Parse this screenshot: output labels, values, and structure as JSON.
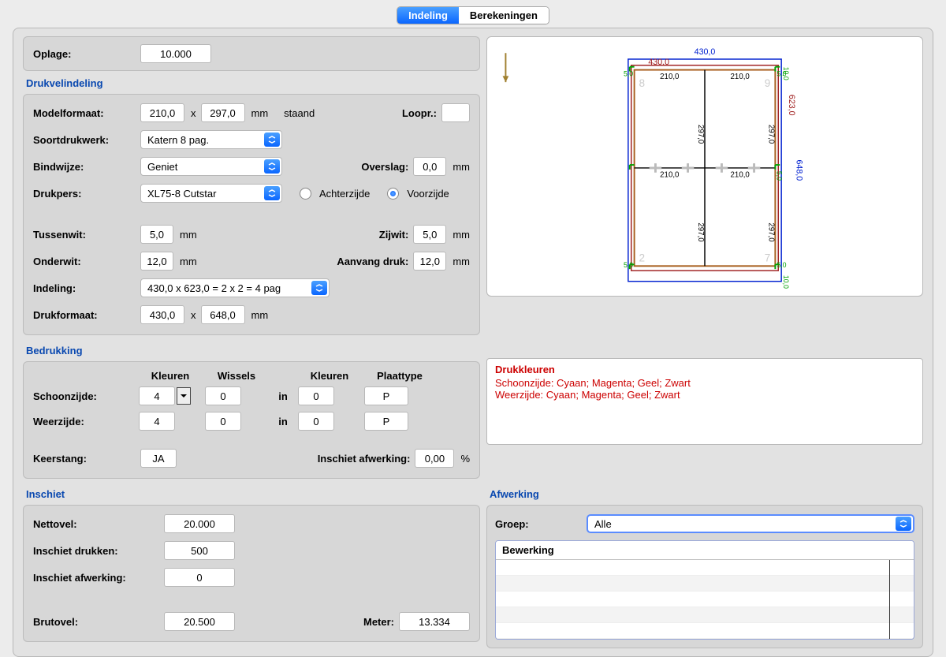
{
  "tabs": {
    "indeling": "Indeling",
    "berekeningen": "Berekeningen",
    "active": "indeling"
  },
  "oplage": {
    "label": "Oplage:",
    "value": "10.000"
  },
  "drukvelindeling": {
    "title": "Drukvelindeling",
    "modelformaat": {
      "label": "Modelformaat:",
      "w": "210,0",
      "x": "x",
      "h": "297,0",
      "unit": "mm",
      "orient": "staand"
    },
    "loopr": {
      "label": "Loopr.:",
      "value": ""
    },
    "soortdrukwerk": {
      "label": "Soortdrukwerk:",
      "value": "Katern   8 pag."
    },
    "bindwijze": {
      "label": "Bindwijze:",
      "value": "Geniet"
    },
    "overslag": {
      "label": "Overslag:",
      "value": "0,0",
      "unit": "mm"
    },
    "drukpers": {
      "label": "Drukpers:",
      "value": "XL75-8 Cutstar"
    },
    "side": {
      "achter": "Achterzijde",
      "voor": "Voorzijde",
      "checked": "voor"
    },
    "tussenwit": {
      "label": "Tussenwit:",
      "value": "5,0",
      "unit": "mm"
    },
    "zijwit": {
      "label": "Zijwit:",
      "value": "5,0",
      "unit": "mm"
    },
    "onderwit": {
      "label": "Onderwit:",
      "value": "12,0",
      "unit": "mm"
    },
    "aanvangdruk": {
      "label": "Aanvang druk:",
      "value": "12,0",
      "unit": "mm"
    },
    "indeling": {
      "label": "Indeling:",
      "value": "430,0 x 623,0 = 2 x 2 = 4 pag"
    },
    "drukformaat": {
      "label": "Drukformaat:",
      "w": "430,0",
      "x": "x",
      "h": "648,0",
      "unit": "mm"
    }
  },
  "bedrukking": {
    "title": "Bedrukking",
    "headers": {
      "kleuren": "Kleuren",
      "wissels": "Wissels",
      "in": "in",
      "kleuren2": "Kleuren",
      "plaattype": "Plaattype"
    },
    "schoonzijde": {
      "label": "Schoonzijde:",
      "kleuren": "4",
      "wissels": "0",
      "in": "in",
      "kleuren2": "0",
      "plaat": "P"
    },
    "weerzijde": {
      "label": "Weerzijde:",
      "kleuren": "4",
      "wissels": "0",
      "in": "in",
      "kleuren2": "0",
      "plaat": "P"
    },
    "keerstang": {
      "label": "Keerstang:",
      "value": "JA"
    },
    "inschietafw": {
      "label": "Inschiet afwerking:",
      "value": "0,00",
      "unit": "%"
    },
    "drukkleuren": {
      "title": "Drukkleuren",
      "schoon": "Schoonzijde: Cyaan; Magenta; Geel; Zwart",
      "weer": "Weerzijde: Cyaan; Magenta; Geel; Zwart"
    }
  },
  "inschiet": {
    "title": "Inschiet",
    "nettovel": {
      "label": "Nettovel:",
      "value": "20.000"
    },
    "inschietdrukken": {
      "label": "Inschiet drukken:",
      "value": "500"
    },
    "inschietafwerking": {
      "label": "Inschiet afwerking:",
      "value": "0"
    },
    "brutovel": {
      "label": "Brutovel:",
      "value": "20.500"
    },
    "meter": {
      "label": "Meter:",
      "value": "13.334"
    }
  },
  "afwerking": {
    "title": "Afwerking",
    "groep": {
      "label": "Groep:",
      "value": "Alle"
    },
    "tablehead": "Bewerking"
  },
  "diagram": {
    "outer_w": "430,0",
    "outer_h_blue": "648,0",
    "outer_h_red": "623,0",
    "inner_w_red": "430,0",
    "cell_w": "210,0",
    "cell_h": "297,0",
    "margins": {
      "top": "10,0",
      "bottom": "10,0",
      "side_top": "5,0",
      "side_bottom": "5,0",
      "gap": "5,0"
    },
    "pagenums": {
      "tl": "8",
      "tr": "9",
      "bl": "2",
      "br": "7"
    },
    "colors": {
      "blue": "#0020d0",
      "red": "#a02020",
      "green": "#00a000",
      "brown": "#a86020",
      "black": "#000000",
      "arrow": "#a08030"
    }
  }
}
